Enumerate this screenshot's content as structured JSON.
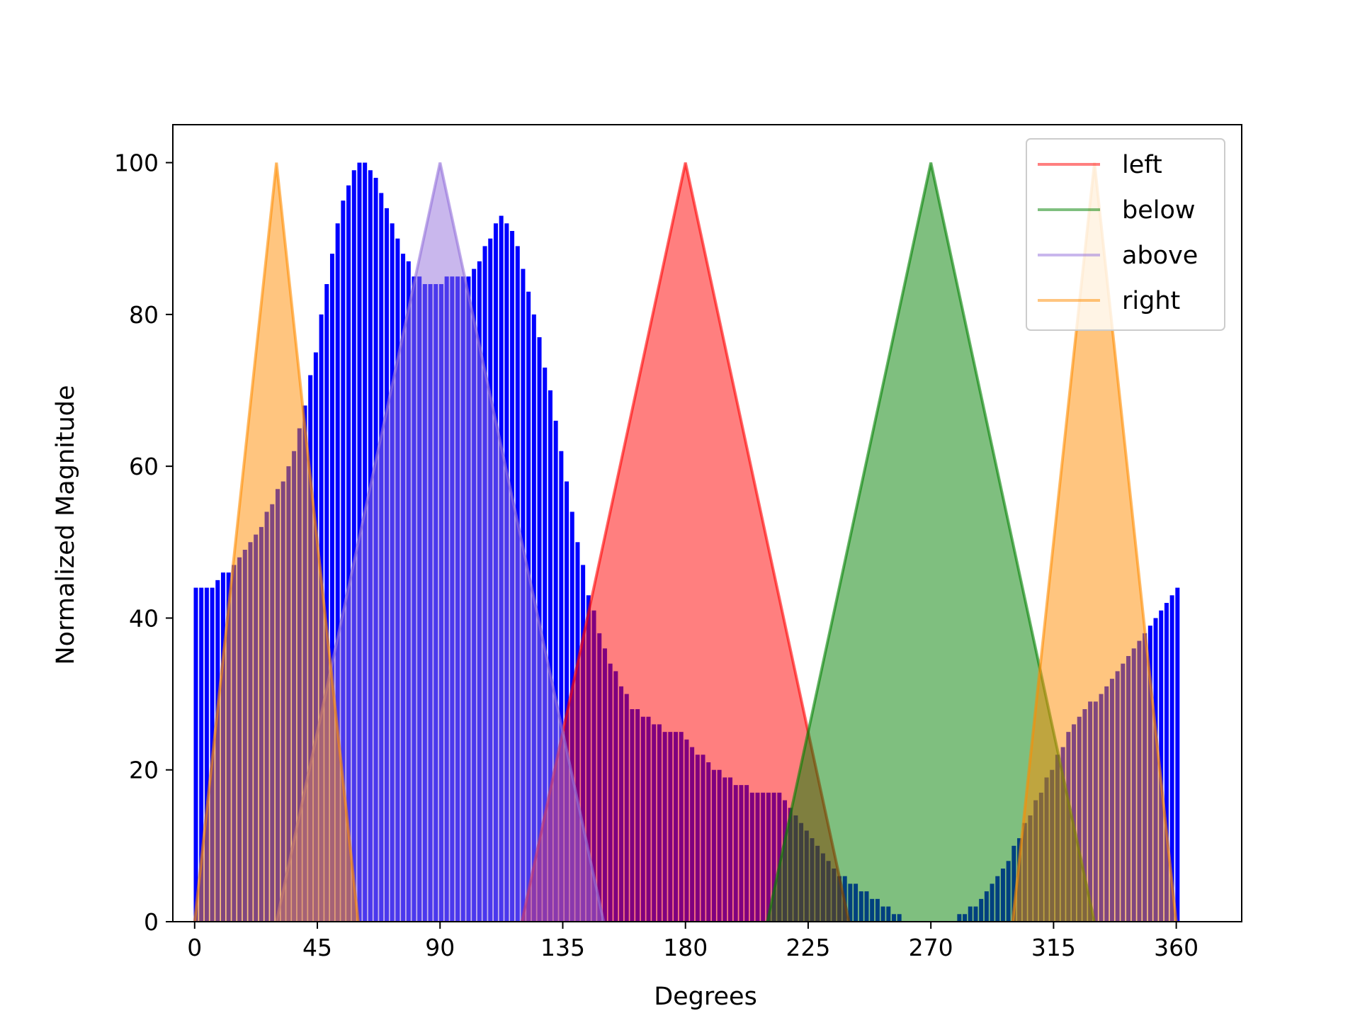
{
  "chart_data": {
    "type": "bar",
    "xlabel": "Degrees",
    "ylabel": "Normalized Magnitude",
    "xlim": [
      -8,
      384
    ],
    "ylim": [
      0,
      105
    ],
    "xticks": [
      0,
      45,
      90,
      135,
      180,
      225,
      270,
      315,
      360
    ],
    "xtick_labels": [
      "0",
      "45",
      "90",
      "135",
      "180",
      "225",
      "270",
      "315",
      "360"
    ],
    "yticks": [
      0,
      20,
      40,
      60,
      80,
      100
    ],
    "ytick_labels": [
      "0",
      "20",
      "40",
      "60",
      "80",
      "100"
    ],
    "grid": false,
    "legend_position": "top-right",
    "histogram": {
      "color": "#0000ff",
      "bin_width_degrees": 2,
      "profile": [
        [
          0,
          44
        ],
        [
          6,
          44
        ],
        [
          8,
          45
        ],
        [
          12,
          46
        ],
        [
          16,
          48
        ],
        [
          20,
          50
        ],
        [
          24,
          52
        ],
        [
          28,
          55
        ],
        [
          32,
          58
        ],
        [
          36,
          62
        ],
        [
          40,
          68
        ],
        [
          44,
          75
        ],
        [
          48,
          84
        ],
        [
          52,
          92
        ],
        [
          56,
          97
        ],
        [
          60,
          100
        ],
        [
          64,
          99
        ],
        [
          68,
          96
        ],
        [
          72,
          92
        ],
        [
          76,
          88
        ],
        [
          80,
          85
        ],
        [
          84,
          84
        ],
        [
          100,
          85
        ],
        [
          104,
          87
        ],
        [
          108,
          90
        ],
        [
          112,
          93
        ],
        [
          116,
          91
        ],
        [
          120,
          86
        ],
        [
          124,
          80
        ],
        [
          128,
          73
        ],
        [
          132,
          66
        ],
        [
          136,
          58
        ],
        [
          140,
          50
        ],
        [
          144,
          43
        ],
        [
          148,
          38
        ],
        [
          152,
          34
        ],
        [
          156,
          31
        ],
        [
          160,
          28
        ],
        [
          164,
          27
        ],
        [
          168,
          26
        ],
        [
          172,
          25
        ],
        [
          178,
          25
        ],
        [
          182,
          23
        ],
        [
          188,
          21
        ],
        [
          194,
          19
        ],
        [
          200,
          18
        ],
        [
          206,
          17
        ],
        [
          212,
          17
        ],
        [
          216,
          16
        ],
        [
          220,
          14
        ],
        [
          224,
          12
        ],
        [
          228,
          10
        ],
        [
          232,
          8
        ],
        [
          236,
          6
        ],
        [
          240,
          5
        ],
        [
          244,
          4
        ],
        [
          248,
          3
        ],
        [
          252,
          2
        ],
        [
          256,
          1
        ],
        [
          262,
          0
        ],
        [
          276,
          0
        ],
        [
          282,
          1
        ],
        [
          286,
          2
        ],
        [
          290,
          4
        ],
        [
          294,
          6
        ],
        [
          298,
          8
        ],
        [
          302,
          11
        ],
        [
          306,
          14
        ],
        [
          310,
          17
        ],
        [
          314,
          20
        ],
        [
          318,
          23
        ],
        [
          322,
          26
        ],
        [
          326,
          28
        ],
        [
          330,
          29
        ],
        [
          334,
          31
        ],
        [
          338,
          33
        ],
        [
          342,
          35
        ],
        [
          346,
          37
        ],
        [
          350,
          39
        ],
        [
          354,
          41
        ],
        [
          360,
          44
        ]
      ]
    },
    "series": [
      {
        "name": "left",
        "color": "#ff0000",
        "points": [
          [
            120,
            0
          ],
          [
            180,
            100
          ],
          [
            240,
            0
          ]
        ]
      },
      {
        "name": "below",
        "color": "#008000",
        "points": [
          [
            210,
            0
          ],
          [
            270,
            100
          ],
          [
            330,
            0
          ]
        ]
      },
      {
        "name": "above",
        "color": "#9370db",
        "points": [
          [
            30,
            0
          ],
          [
            90,
            100
          ],
          [
            150,
            0
          ]
        ]
      },
      {
        "name": "right",
        "color": "#ff8c00",
        "segments": [
          [
            [
              0,
              0
            ],
            [
              30,
              100
            ],
            [
              60,
              0
            ]
          ],
          [
            [
              300,
              0
            ],
            [
              330,
              100
            ],
            [
              360,
              0
            ]
          ]
        ]
      }
    ]
  }
}
